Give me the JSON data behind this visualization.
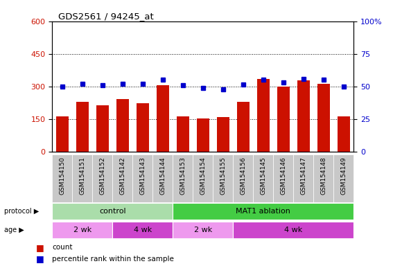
{
  "title": "GDS2561 / 94245_at",
  "samples": [
    "GSM154150",
    "GSM154151",
    "GSM154152",
    "GSM154142",
    "GSM154143",
    "GSM154144",
    "GSM154153",
    "GSM154154",
    "GSM154155",
    "GSM154156",
    "GSM154145",
    "GSM154146",
    "GSM154147",
    "GSM154148",
    "GSM154149"
  ],
  "counts": [
    163,
    228,
    212,
    243,
    222,
    305,
    163,
    153,
    160,
    228,
    335,
    298,
    328,
    312,
    163
  ],
  "percentile": [
    50,
    52,
    51,
    52,
    52,
    55,
    51,
    49,
    48,
    51.5,
    55,
    53,
    56,
    55,
    50
  ],
  "bar_color": "#cc1100",
  "dot_color": "#0000cc",
  "ylim_left": [
    0,
    600
  ],
  "ylim_right": [
    0,
    100
  ],
  "yticks_left": [
    0,
    150,
    300,
    450,
    600
  ],
  "yticks_right": [
    0,
    25,
    50,
    75,
    100
  ],
  "ytick_labels_right": [
    "0",
    "25",
    "50",
    "75",
    "100%"
  ],
  "protocol_groups": [
    {
      "label": "control",
      "start": 0,
      "end": 5,
      "color": "#aaddaa"
    },
    {
      "label": "MAT1 ablation",
      "start": 6,
      "end": 14,
      "color": "#44cc44"
    }
  ],
  "age_groups": [
    {
      "label": "2 wk",
      "start": 0,
      "end": 2,
      "color": "#ee99ee"
    },
    {
      "label": "4 wk",
      "start": 3,
      "end": 5,
      "color": "#cc44cc"
    },
    {
      "label": "2 wk",
      "start": 6,
      "end": 8,
      "color": "#ee99ee"
    },
    {
      "label": "4 wk",
      "start": 9,
      "end": 14,
      "color": "#cc44cc"
    }
  ],
  "sample_bg_color": "#c8c8c8",
  "protocol_label": "protocol",
  "age_label": "age",
  "legend_count_label": "count",
  "legend_pct_label": "percentile rank within the sample",
  "label_arrow": "▶"
}
